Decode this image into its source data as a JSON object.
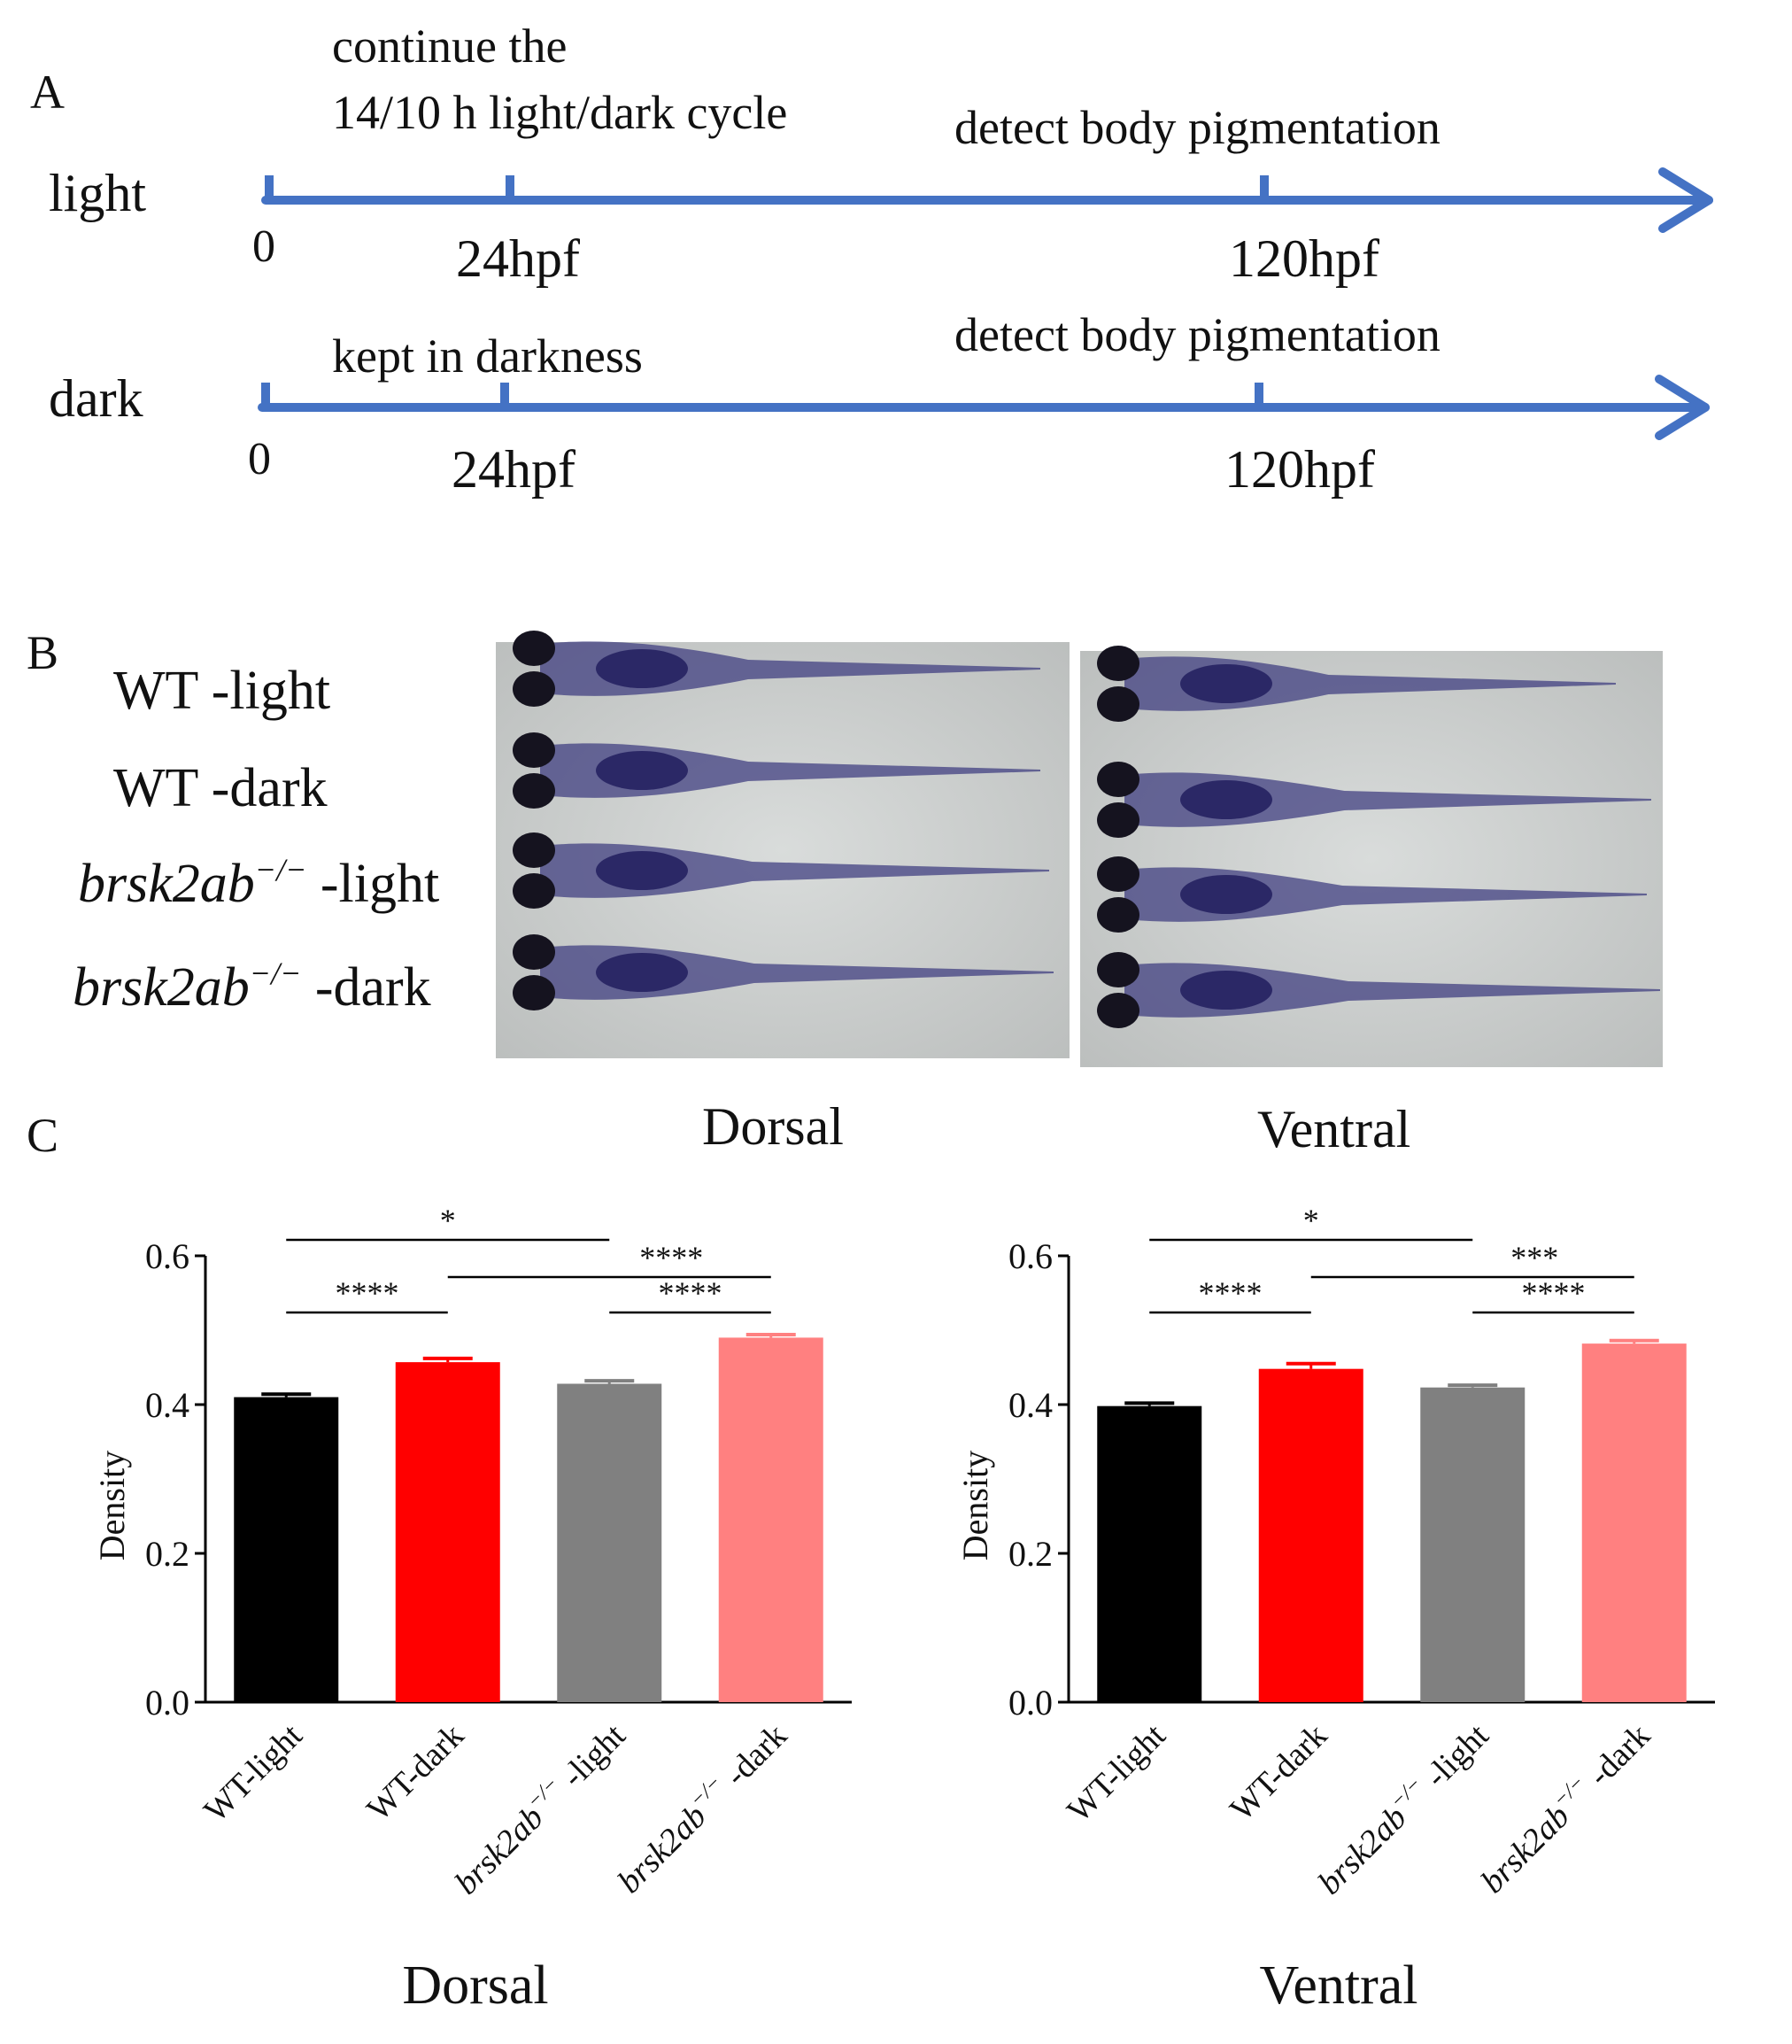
{
  "panel_a": {
    "letter": "A",
    "rows": [
      {
        "label": "light",
        "ticks": [
          "0",
          "24hpf",
          "120hpf"
        ],
        "notes": [
          {
            "id": "continue-note-line1",
            "text": "continue the"
          },
          {
            "id": "continue-note-line2",
            "text": "14/10 h light/dark cycle"
          },
          {
            "id": "detect-note",
            "text": "detect body pigmentation"
          }
        ]
      },
      {
        "label": "dark",
        "ticks": [
          "0",
          "24hpf",
          "120hpf"
        ],
        "notes": [
          {
            "id": "darkness-note",
            "text": "kept in darkness"
          },
          {
            "id": "detect-note",
            "text": "detect body pigmentation"
          }
        ]
      }
    ],
    "axis_color": "#4472c4"
  },
  "panel_b": {
    "letter": "B",
    "rows": [
      {
        "prefix": "WT",
        "suffix": " -light"
      },
      {
        "prefix": "WT",
        "suffix": " -dark"
      },
      {
        "gene": "brsk2ab",
        "sup": "−/−",
        "suffix": " -light"
      },
      {
        "gene": "brsk2ab",
        "sup": "−/−",
        "suffix": " -dark"
      }
    ],
    "views": [
      "Dorsal",
      "Ventral"
    ],
    "photo_background": "#c9cccb",
    "larva_color": "#3c3a7e"
  },
  "panel_c": {
    "letter": "C"
  },
  "chart_data": [
    {
      "type": "bar",
      "title": "",
      "xlabel": "Dorsal",
      "ylabel": "Density",
      "ylim": [
        0,
        0.6
      ],
      "yticks": [
        "0.0",
        "0.2",
        "0.4",
        "0.6"
      ],
      "categories": [
        {
          "prefix": "WT-light"
        },
        {
          "prefix": "WT-dark"
        },
        {
          "gene": "brsk2ab",
          "sup": "−/−",
          "suffix": " -light"
        },
        {
          "gene": "brsk2ab",
          "sup": "−/−",
          "suffix": " -dark"
        }
      ],
      "values": [
        0.41,
        0.457,
        0.428,
        0.49
      ],
      "errors": [
        0.004,
        0.005,
        0.004,
        0.004
      ],
      "colors": [
        "#000000",
        "#ff0000",
        "#808080",
        "#ff8080"
      ],
      "significance": [
        {
          "from": 0,
          "to": 2,
          "label": "*"
        },
        {
          "from": 1,
          "to": 3,
          "label": "****"
        },
        {
          "from": 0,
          "to": 1,
          "label": "****"
        },
        {
          "from": 2,
          "to": 3,
          "label": "****"
        }
      ]
    },
    {
      "type": "bar",
      "title": "",
      "xlabel": "Ventral",
      "ylabel": "Density",
      "ylim": [
        0,
        0.6
      ],
      "yticks": [
        "0.0",
        "0.2",
        "0.4",
        "0.6"
      ],
      "categories": [
        {
          "prefix": "WT-light"
        },
        {
          "prefix": "WT-dark"
        },
        {
          "gene": "brsk2ab",
          "sup": "−/−",
          "suffix": " -light"
        },
        {
          "gene": "brsk2ab",
          "sup": "−/−",
          "suffix": " -dark"
        }
      ],
      "values": [
        0.398,
        0.448,
        0.423,
        0.482
      ],
      "errors": [
        0.004,
        0.007,
        0.003,
        0.004
      ],
      "colors": [
        "#000000",
        "#ff0000",
        "#808080",
        "#ff8080"
      ],
      "significance": [
        {
          "from": 0,
          "to": 2,
          "label": "*"
        },
        {
          "from": 1,
          "to": 3,
          "label": "***"
        },
        {
          "from": 0,
          "to": 1,
          "label": "****"
        },
        {
          "from": 2,
          "to": 3,
          "label": "****"
        }
      ]
    }
  ]
}
